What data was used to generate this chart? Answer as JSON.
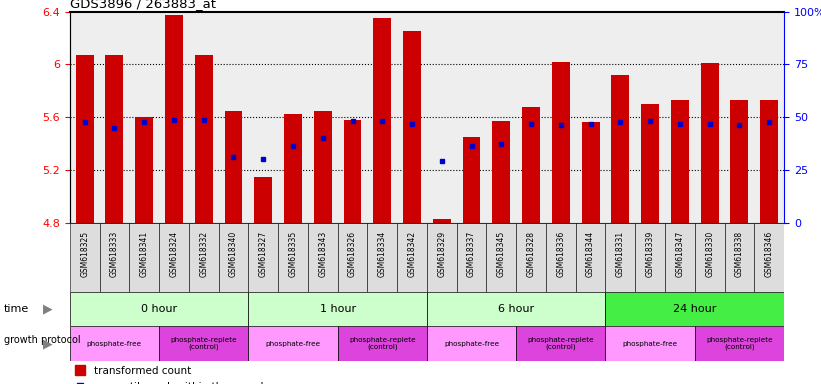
{
  "title": "GDS3896 / 263883_at",
  "samples": [
    "GSM618325",
    "GSM618333",
    "GSM618341",
    "GSM618324",
    "GSM618332",
    "GSM618340",
    "GSM618327",
    "GSM618335",
    "GSM618343",
    "GSM618326",
    "GSM618334",
    "GSM618342",
    "GSM618329",
    "GSM618337",
    "GSM618345",
    "GSM618328",
    "GSM618336",
    "GSM618344",
    "GSM618331",
    "GSM618339",
    "GSM618347",
    "GSM618330",
    "GSM618338",
    "GSM618346"
  ],
  "bar_values": [
    6.07,
    6.07,
    5.6,
    6.37,
    6.07,
    5.65,
    5.15,
    5.62,
    5.65,
    5.58,
    6.35,
    6.25,
    4.83,
    5.45,
    5.57,
    5.68,
    6.02,
    5.56,
    5.92,
    5.7,
    5.73,
    6.01,
    5.73,
    5.73
  ],
  "blue_values": [
    5.56,
    5.52,
    5.56,
    5.58,
    5.58,
    5.3,
    5.28,
    5.38,
    5.44,
    5.57,
    5.57,
    5.55,
    5.27,
    5.38,
    5.4,
    5.55,
    5.54,
    5.55,
    5.56,
    5.57,
    5.55,
    5.55,
    5.54,
    5.56
  ],
  "bar_color": "#cc0000",
  "blue_color": "#0000cc",
  "ymin": 4.8,
  "ymax": 6.4,
  "yticks": [
    4.8,
    5.2,
    5.6,
    6.0,
    6.4
  ],
  "ytick_labels": [
    "4.8",
    "5.2",
    "5.6",
    "6",
    "6.4"
  ],
  "right_yticks": [
    0,
    25,
    50,
    75,
    100
  ],
  "right_ytick_labels": [
    "0",
    "25",
    "50",
    "75",
    "100%"
  ],
  "time_groups": [
    {
      "label": "0 hour",
      "start": 0,
      "end": 6,
      "color": "#ccffcc"
    },
    {
      "label": "1 hour",
      "start": 6,
      "end": 12,
      "color": "#ccffcc"
    },
    {
      "label": "6 hour",
      "start": 12,
      "end": 18,
      "color": "#ccffcc"
    },
    {
      "label": "24 hour",
      "start": 18,
      "end": 24,
      "color": "#44ee44"
    }
  ],
  "protocol_groups": [
    {
      "label": "phosphate-free",
      "start": 0,
      "end": 3,
      "color": "#ff99ff"
    },
    {
      "label": "phosphate-replete\n(control)",
      "start": 3,
      "end": 6,
      "color": "#dd44dd"
    },
    {
      "label": "phosphate-free",
      "start": 6,
      "end": 9,
      "color": "#ff99ff"
    },
    {
      "label": "phosphate-replete\n(control)",
      "start": 9,
      "end": 12,
      "color": "#dd44dd"
    },
    {
      "label": "phosphate-free",
      "start": 12,
      "end": 15,
      "color": "#ff99ff"
    },
    {
      "label": "phosphate-replete\n(control)",
      "start": 15,
      "end": 18,
      "color": "#dd44dd"
    },
    {
      "label": "phosphate-free",
      "start": 18,
      "end": 21,
      "color": "#ff99ff"
    },
    {
      "label": "phosphate-replete\n(control)",
      "start": 21,
      "end": 24,
      "color": "#dd44dd"
    }
  ],
  "bg_color": "#ffffff",
  "plot_bg": "#eeeeee",
  "xtick_bg": "#dddddd"
}
